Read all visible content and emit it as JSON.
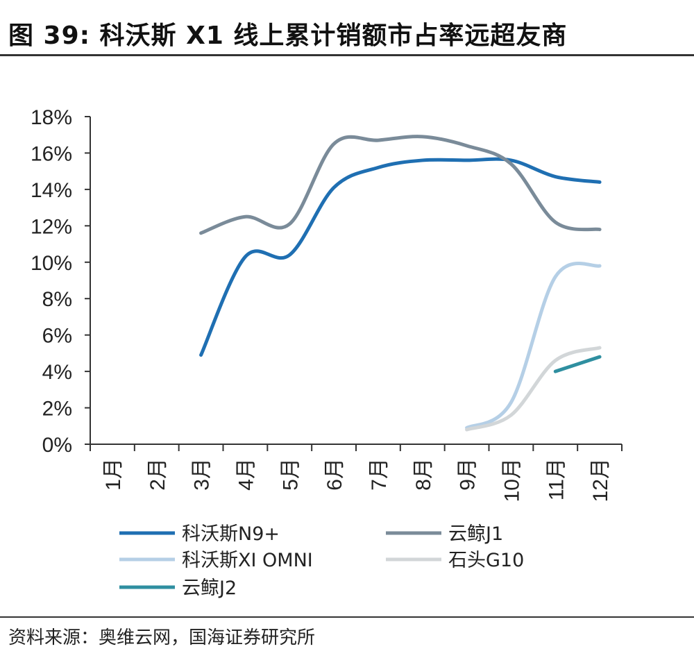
{
  "title": "图 39:   科沃斯 X1 线上累计销额市占率远超友商",
  "source": "资料来源：奥维云网，国海证券研究所",
  "chart_data": {
    "type": "line",
    "title": "科沃斯 X1 线上累计销额市占率远超友商",
    "xlabel": "",
    "ylabel": "",
    "categories": [
      "1月",
      "2月",
      "3月",
      "4月",
      "5月",
      "6月",
      "7月",
      "8月",
      "9月",
      "10月",
      "11月",
      "12月"
    ],
    "ylim": [
      0,
      18
    ],
    "yticks": [
      0,
      2,
      4,
      6,
      8,
      10,
      12,
      14,
      16,
      18
    ],
    "ytick_labels": [
      "0%",
      "2%",
      "4%",
      "6%",
      "8%",
      "10%",
      "12%",
      "14%",
      "16%",
      "18%"
    ],
    "grid": false,
    "legend_position": "bottom",
    "series": [
      {
        "name": "科沃斯N9+",
        "color": "#1f6fb2",
        "values": [
          null,
          null,
          4.9,
          10.3,
          10.4,
          14.1,
          15.2,
          15.6,
          15.6,
          15.6,
          14.7,
          14.4
        ]
      },
      {
        "name": "云鲸J1",
        "color": "#7a8b99",
        "values": [
          null,
          null,
          11.6,
          12.5,
          12.1,
          16.5,
          16.7,
          16.9,
          16.4,
          15.4,
          12.2,
          11.8
        ]
      },
      {
        "name": "科沃斯XI OMNI",
        "color": "#b5cfe6",
        "values": [
          null,
          null,
          null,
          null,
          null,
          null,
          null,
          null,
          0.9,
          2.3,
          9.2,
          9.8
        ]
      },
      {
        "name": "石头G10",
        "color": "#d2d6d8",
        "values": [
          null,
          null,
          null,
          null,
          null,
          null,
          null,
          null,
          0.8,
          1.6,
          4.6,
          5.3
        ]
      },
      {
        "name": "云鲸J2",
        "color": "#2f8fa0",
        "values": [
          null,
          null,
          null,
          null,
          null,
          null,
          null,
          null,
          null,
          null,
          4.0,
          4.8
        ]
      }
    ]
  }
}
